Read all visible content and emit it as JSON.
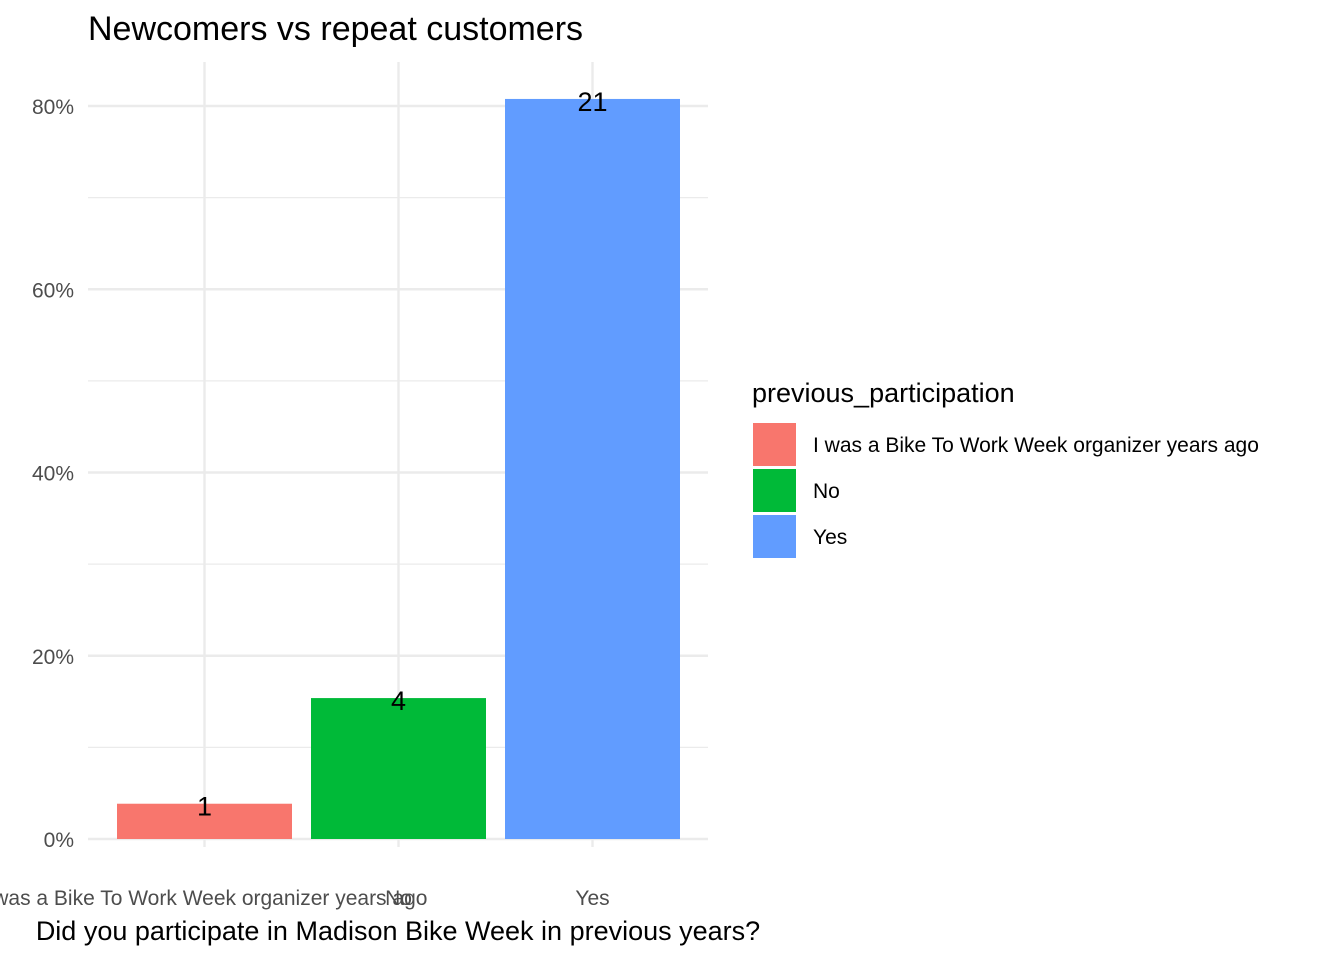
{
  "chart_data": {
    "type": "bar",
    "title": "Newcomers vs repeat customers",
    "xlabel": "Did you participate in Madison Bike Week in previous years?",
    "ylabel": "",
    "categories": [
      "I was a Bike To Work Week organizer years ago",
      "No",
      "Yes"
    ],
    "values": [
      0.0385,
      0.1538,
      0.8077
    ],
    "counts": [
      "1",
      "4",
      "21"
    ],
    "colors": [
      "#F8766D",
      "#00BA38",
      "#619CFF"
    ],
    "ylim": [
      0,
      0.85
    ],
    "yticks": [
      0,
      0.2,
      0.4,
      0.6,
      0.8
    ],
    "ytick_labels": [
      "0%",
      "20%",
      "40%",
      "60%",
      "80%"
    ],
    "grid": true,
    "legend": {
      "title": "previous_participation",
      "position": "right",
      "entries": [
        "I was a Bike To Work Week organizer years ago",
        "No",
        "Yes"
      ]
    }
  }
}
